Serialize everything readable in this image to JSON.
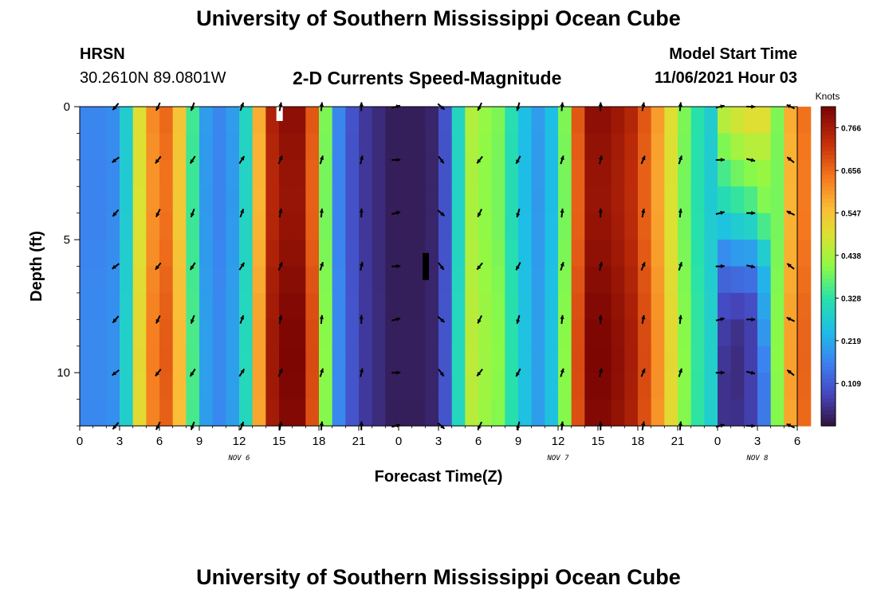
{
  "header": {
    "title": "University of Southern Mississippi Ocean Cube",
    "station": "HRSN",
    "location": "30.2610N  89.0801W",
    "subtitle": "2-D Currents Speed-Magnitude",
    "model_start_label": "Model Start Time",
    "model_start_value": "11/06/2021 Hour 03"
  },
  "footer": {
    "title": "University of Southern Mississippi Ocean Cube"
  },
  "chart_data": {
    "type": "heatmap",
    "title": "2-D Currents Speed-Magnitude",
    "xlabel": "Forecast Time(Z)",
    "ylabel": "Depth (ft)",
    "x_hours": [
      0,
      54
    ],
    "y_depth_ft": [
      0,
      12
    ],
    "x_ticks": [
      0,
      3,
      6,
      9,
      12,
      15,
      18,
      21,
      24,
      27,
      30,
      33,
      36,
      39,
      42,
      45,
      48,
      51,
      54
    ],
    "x_tick_labels": [
      "0",
      "3",
      "6",
      "9",
      "12",
      "15",
      "18",
      "21",
      "0",
      "3",
      "6",
      "9",
      "12",
      "15",
      "18",
      "21",
      "0",
      "3",
      "6"
    ],
    "y_ticks": [
      0,
      5,
      10
    ],
    "y_tick_labels": [
      "0",
      "5",
      "10"
    ],
    "date_labels": [
      {
        "hour": 12,
        "text": "NOV 6"
      },
      {
        "hour": 36,
        "text": "NOV 7"
      },
      {
        "hour": 51,
        "text": "NOV 8"
      }
    ],
    "colorbar": {
      "label": "Knots",
      "min": 0.0,
      "max": 0.82,
      "ticks": [
        0.109,
        0.219,
        0.328,
        0.438,
        0.547,
        0.656,
        0.766
      ],
      "tick_labels": [
        "0.109",
        "0.219",
        "0.328",
        "0.438",
        "0.547",
        "0.656",
        "0.766"
      ]
    },
    "speed_profile_knots": [
      0.17,
      0.17,
      0.18,
      0.28,
      0.5,
      0.62,
      0.66,
      0.55,
      0.35,
      0.2,
      0.17,
      0.2,
      0.3,
      0.58,
      0.76,
      0.8,
      0.8,
      0.68,
      0.4,
      0.17,
      0.1,
      0.06,
      0.04,
      0.02,
      0.02,
      0.02,
      0.03,
      0.1,
      0.3,
      0.45,
      0.42,
      0.4,
      0.32,
      0.25,
      0.2,
      0.25,
      0.4,
      0.68,
      0.8,
      0.8,
      0.78,
      0.75,
      0.68,
      0.6,
      0.5,
      0.4,
      0.33,
      0.28,
      0.35,
      0.45,
      0.35,
      0.35,
      0.4,
      0.58,
      0.65
    ],
    "depth_sample_ft": [
      0,
      2,
      4,
      6,
      8,
      10,
      12
    ],
    "low_pocket_speed_knots": [
      [
        0.48,
        0.38,
        0.3,
        0.14,
        0.07,
        0.05,
        0.05
      ],
      [
        0.5,
        0.42,
        0.32,
        0.16,
        0.05,
        0.04,
        0.05
      ],
      [
        0.52,
        0.44,
        0.34,
        0.16,
        0.07,
        0.07,
        0.07
      ],
      [
        0.52,
        0.44,
        0.4,
        0.24,
        0.2,
        0.15,
        0.15
      ]
    ],
    "low_pocket_hours": [
      48,
      49,
      50,
      51
    ],
    "vector_hours": [
      2.7,
      5.9,
      8.5,
      12.2,
      15.1,
      18.2,
      21.2,
      23.8,
      27.2,
      30.1,
      33.0,
      36.3,
      39.2,
      42.4,
      45.2,
      48.2,
      50.5,
      53.5
    ],
    "vector_depths_ft": [
      0,
      2,
      4,
      6,
      8,
      10,
      12
    ],
    "vector_directions_deg": [
      225,
      210,
      205,
      25,
      15,
      10,
      5,
      80,
      135,
      210,
      200,
      10,
      5,
      15,
      10,
      80,
      95,
      300
    ]
  }
}
